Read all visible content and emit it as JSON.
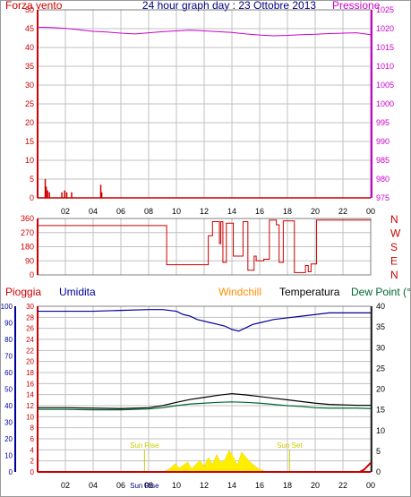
{
  "header": {
    "left_label": "Forza vento",
    "title": "24 hour graph day : 23 Ottobre 2013",
    "right_label": "Pressione"
  },
  "colors": {
    "grid": "#c0c0c0",
    "axis_dark": "#000000",
    "wind": "#cc0000",
    "pressure": "#cc00cc",
    "title": "#000080",
    "humidity": "#000099",
    "windchill": "#ff8c00",
    "temperature": "#000000",
    "dewpoint": "#006633",
    "rain": "#cc0000",
    "sun": "#ffee00",
    "sun_text": "#cccc00"
  },
  "chart_data": [
    {
      "type": "line",
      "name": "wind-pressure",
      "x_ticks": [
        "02",
        "04",
        "06",
        "08",
        "10",
        "12",
        "14",
        "16",
        "18",
        "20",
        "22",
        "00"
      ],
      "xlim": [
        0,
        24
      ],
      "y_left": {
        "ylim": [
          0,
          50
        ],
        "ticks": [
          "0",
          "5",
          "10",
          "15",
          "20",
          "25",
          "30",
          "35",
          "40",
          "45",
          "50"
        ]
      },
      "y_right": {
        "ylim": [
          975,
          1025
        ],
        "ticks": [
          "975",
          "980",
          "985",
          "990",
          "995",
          "1000",
          "1005",
          "1010",
          "1015",
          "1020",
          "1025"
        ]
      },
      "series": [
        {
          "key": "wind",
          "axis": "left",
          "style": "spikes",
          "points": [
            [
              0.55,
              5
            ],
            [
              0.62,
              3
            ],
            [
              0.72,
              2
            ],
            [
              0.85,
              1.5
            ],
            [
              1.75,
              1.5
            ],
            [
              1.95,
              2
            ],
            [
              2.1,
              1.5
            ],
            [
              2.45,
              1.5
            ],
            [
              4.55,
              3.5
            ],
            [
              4.62,
              1.5
            ]
          ]
        },
        {
          "key": "pressure",
          "axis": "right",
          "style": "line",
          "points": [
            [
              0,
              1020.4
            ],
            [
              1,
              1020.3
            ],
            [
              2,
              1020.1
            ],
            [
              3,
              1019.7
            ],
            [
              4,
              1019.3
            ],
            [
              5,
              1019.1
            ],
            [
              6,
              1018.8
            ],
            [
              7,
              1018.6
            ],
            [
              8,
              1018.9
            ],
            [
              9,
              1019.2
            ],
            [
              10,
              1019.4
            ],
            [
              11,
              1019.6
            ],
            [
              12,
              1019.4
            ],
            [
              13,
              1019.2
            ],
            [
              14,
              1019.0
            ],
            [
              15,
              1018.6
            ],
            [
              16,
              1018.3
            ],
            [
              17,
              1018.1
            ],
            [
              18,
              1018.2
            ],
            [
              19,
              1018.4
            ],
            [
              20,
              1018.5
            ],
            [
              21,
              1018.7
            ],
            [
              22,
              1018.8
            ],
            [
              23,
              1018.9
            ],
            [
              24,
              1018.4
            ]
          ]
        }
      ]
    },
    {
      "type": "line",
      "name": "wind-direction",
      "x_ticks": [
        "02",
        "04",
        "06",
        "08",
        "10",
        "12",
        "14",
        "16",
        "18",
        "20",
        "22",
        "00"
      ],
      "xlim": [
        0,
        24
      ],
      "y_left": {
        "ylim": [
          0,
          360
        ],
        "ticks": [
          "0",
          "90",
          "180",
          "270",
          "360"
        ]
      },
      "y_right": {
        "ticks": [
          "N",
          "W",
          "S",
          "E",
          "N"
        ]
      },
      "series": [
        {
          "key": "direction",
          "points": [
            [
              0,
              315
            ],
            [
              9.3,
              315
            ],
            [
              9.3,
              65
            ],
            [
              12.3,
              65
            ],
            [
              12.3,
              250
            ],
            [
              12.6,
              250
            ],
            [
              12.6,
              340
            ],
            [
              13.1,
              340
            ],
            [
              13.1,
              200
            ],
            [
              13.2,
              200
            ],
            [
              13.2,
              340
            ],
            [
              13.35,
              340
            ],
            [
              13.35,
              80
            ],
            [
              13.6,
              80
            ],
            [
              13.6,
              330
            ],
            [
              14.1,
              330
            ],
            [
              14.1,
              120
            ],
            [
              14.8,
              120
            ],
            [
              14.8,
              340
            ],
            [
              15.15,
              340
            ],
            [
              15.15,
              30
            ],
            [
              15.6,
              30
            ],
            [
              15.6,
              120
            ],
            [
              15.75,
              120
            ],
            [
              15.75,
              90
            ],
            [
              16.3,
              90
            ],
            [
              16.3,
              100
            ],
            [
              16.7,
              100
            ],
            [
              16.7,
              350
            ],
            [
              17.2,
              350
            ],
            [
              17.2,
              320
            ],
            [
              17.4,
              320
            ],
            [
              17.4,
              80
            ],
            [
              17.7,
              80
            ],
            [
              17.7,
              345
            ],
            [
              18.5,
              345
            ],
            [
              18.5,
              15
            ],
            [
              19.3,
              15
            ],
            [
              19.3,
              60
            ],
            [
              19.5,
              60
            ],
            [
              19.5,
              20
            ],
            [
              19.7,
              20
            ],
            [
              19.7,
              70
            ],
            [
              20.1,
              70
            ],
            [
              20.1,
              350
            ],
            [
              24,
              350
            ]
          ]
        }
      ]
    },
    {
      "type": "line",
      "name": "rain-humidity-temperature",
      "legend": [
        "Pioggia",
        "Umidita",
        "Windchill",
        "Temperatura",
        "Dew Point (°C"
      ],
      "x_ticks": [
        "02",
        "04",
        "06",
        "08",
        "10",
        "12",
        "14",
        "16",
        "18",
        "20",
        "22",
        "00"
      ],
      "x_extra_label": "Sun Rise",
      "xlim": [
        0,
        24
      ],
      "y_humidity": {
        "ylim": [
          0,
          100
        ],
        "ticks": [
          "0",
          "10",
          "20",
          "30",
          "40",
          "50",
          "60",
          "70",
          "80",
          "90",
          "100"
        ]
      },
      "y_rain": {
        "ylim": [
          0,
          30
        ],
        "ticks": [
          "0",
          "2",
          "4",
          "6",
          "8",
          "10",
          "12",
          "14",
          "16",
          "18",
          "20",
          "22",
          "24",
          "26",
          "28",
          "30"
        ]
      },
      "y_temp": {
        "ylim": [
          0,
          40
        ],
        "ticks": [
          "0",
          "5",
          "10",
          "15",
          "20",
          "25",
          "30",
          "35",
          "40"
        ]
      },
      "annotations": [
        {
          "text": "Sun Rise",
          "x": 7.7
        },
        {
          "text": "Sun Set",
          "x": 18.15
        }
      ],
      "series": [
        {
          "key": "humidity",
          "axis": "humidity",
          "points": [
            [
              0,
              97
            ],
            [
              2,
              97
            ],
            [
              4,
              97
            ],
            [
              6,
              97.5
            ],
            [
              8,
              98
            ],
            [
              9,
              98
            ],
            [
              10,
              97
            ],
            [
              10.5,
              95
            ],
            [
              11,
              94
            ],
            [
              11.5,
              92
            ],
            [
              12,
              91
            ],
            [
              12.5,
              90
            ],
            [
              13,
              89
            ],
            [
              13.5,
              88
            ],
            [
              14,
              86
            ],
            [
              14.5,
              85
            ],
            [
              15,
              87
            ],
            [
              15.5,
              89
            ],
            [
              16,
              90
            ],
            [
              17,
              92
            ],
            [
              18,
              93
            ],
            [
              19,
              94
            ],
            [
              20,
              95
            ],
            [
              21,
              96
            ],
            [
              22,
              96
            ],
            [
              23,
              96
            ],
            [
              24,
              96
            ]
          ]
        },
        {
          "key": "temperature",
          "axis": "temp",
          "points": [
            [
              0,
              15.5
            ],
            [
              2,
              15.5
            ],
            [
              4,
              15.4
            ],
            [
              6,
              15.3
            ],
            [
              8,
              15.5
            ],
            [
              9,
              16.0
            ],
            [
              10,
              16.8
            ],
            [
              11,
              17.5
            ],
            [
              12,
              18.0
            ],
            [
              13,
              18.5
            ],
            [
              14,
              18.9
            ],
            [
              15,
              18.6
            ],
            [
              16,
              18.2
            ],
            [
              17,
              17.8
            ],
            [
              18,
              17.4
            ],
            [
              19,
              17.0
            ],
            [
              20,
              16.6
            ],
            [
              21,
              16.3
            ],
            [
              22,
              16.2
            ],
            [
              23,
              16.1
            ],
            [
              24,
              16.1
            ]
          ]
        },
        {
          "key": "dewpoint",
          "axis": "temp",
          "points": [
            [
              0,
              15.1
            ],
            [
              2,
              15.1
            ],
            [
              4,
              15.0
            ],
            [
              6,
              15.0
            ],
            [
              8,
              15.2
            ],
            [
              9,
              15.5
            ],
            [
              10,
              16.0
            ],
            [
              11,
              16.4
            ],
            [
              12,
              16.6
            ],
            [
              13,
              16.8
            ],
            [
              14,
              16.9
            ],
            [
              15,
              16.8
            ],
            [
              16,
              16.6
            ],
            [
              17,
              16.3
            ],
            [
              18,
              16.0
            ],
            [
              19,
              15.8
            ],
            [
              20,
              15.5
            ],
            [
              21,
              15.4
            ],
            [
              22,
              15.4
            ],
            [
              23,
              15.4
            ],
            [
              24,
              15.3
            ]
          ]
        },
        {
          "key": "rain",
          "axis": "temp",
          "points": [
            [
              0,
              0
            ],
            [
              23.2,
              0
            ],
            [
              23.5,
              0.5
            ],
            [
              23.8,
              1.5
            ],
            [
              24,
              2.2
            ]
          ]
        },
        {
          "key": "sun",
          "axis": "temp",
          "style": "area",
          "points": [
            [
              9.0,
              0
            ],
            [
              9.3,
              0.4
            ],
            [
              9.6,
              1.0
            ],
            [
              9.9,
              2.0
            ],
            [
              10.2,
              1.0
            ],
            [
              10.5,
              1.6
            ],
            [
              10.8,
              2.4
            ],
            [
              11.1,
              0.8
            ],
            [
              11.4,
              1.8
            ],
            [
              11.7,
              2.8
            ],
            [
              12.0,
              1.2
            ],
            [
              12.3,
              3.5
            ],
            [
              12.6,
              1.8
            ],
            [
              12.9,
              4.2
            ],
            [
              13.2,
              2.2
            ],
            [
              13.5,
              3.0
            ],
            [
              13.8,
              5.2
            ],
            [
              14.1,
              3.6
            ],
            [
              14.4,
              1.6
            ],
            [
              14.7,
              4.8
            ],
            [
              15.0,
              3.6
            ],
            [
              15.3,
              2.4
            ],
            [
              15.6,
              1.6
            ],
            [
              15.9,
              0.8
            ],
            [
              16.2,
              0.4
            ],
            [
              16.5,
              0
            ]
          ]
        }
      ]
    }
  ]
}
